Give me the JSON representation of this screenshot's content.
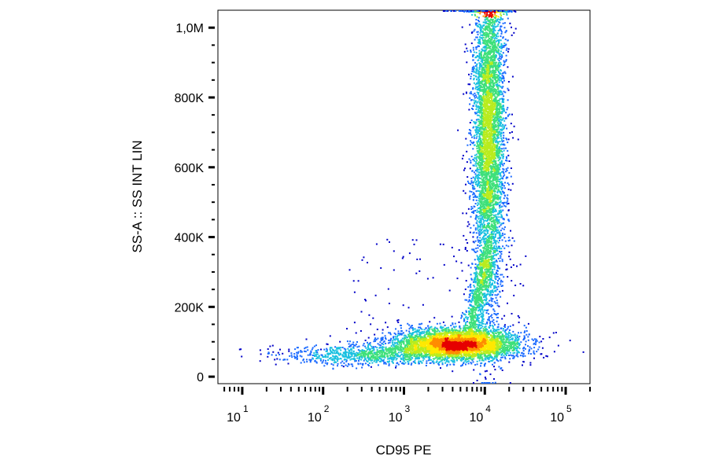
{
  "chart_data": {
    "type": "scatter",
    "subtype": "flow-cytometry-density-dot-plot",
    "xlabel": "CD95 PE",
    "ylabel": "SS-A :: SS INT LIN",
    "x_scale": "log",
    "y_scale": "linear",
    "xlim": [
      5,
      200000
    ],
    "ylim": [
      -20000,
      1050000
    ],
    "x_ticks": [
      {
        "value": 10,
        "base": "10",
        "exp": "1"
      },
      {
        "value": 100,
        "base": "10",
        "exp": "2"
      },
      {
        "value": 1000,
        "base": "10",
        "exp": "3"
      },
      {
        "value": 10000,
        "base": "10",
        "exp": "4"
      },
      {
        "value": 100000,
        "base": "10",
        "exp": "5"
      }
    ],
    "y_ticks": [
      {
        "value": 0,
        "label": "0"
      },
      {
        "value": 200000,
        "label": "200K"
      },
      {
        "value": 400000,
        "label": "400K"
      },
      {
        "value": 600000,
        "label": "600K"
      },
      {
        "value": 800000,
        "label": "800K"
      },
      {
        "value": 1000000,
        "label": "1,0M"
      }
    ],
    "populations": [
      {
        "name": "",
        "x_center": 4500,
        "y_center": 95000,
        "log_x_spread": 0.38,
        "y_spread": 22000,
        "count": 4200
      },
      {
        "name": "",
        "x_center": 11000,
        "y_center": 700000,
        "log_x_spread": 0.1,
        "y_spread": 260000,
        "count": 5200
      },
      {
        "name": "",
        "x_center": 400,
        "y_center": 65000,
        "log_x_spread": 0.55,
        "y_spread": 15000,
        "count": 900
      }
    ],
    "colormap": [
      "#0000c8",
      "#1a6aff",
      "#19c0e0",
      "#3ee07a",
      "#b8ec1e",
      "#ffe800",
      "#ff8c00",
      "#e60000"
    ],
    "grid": false,
    "legend": "none"
  }
}
